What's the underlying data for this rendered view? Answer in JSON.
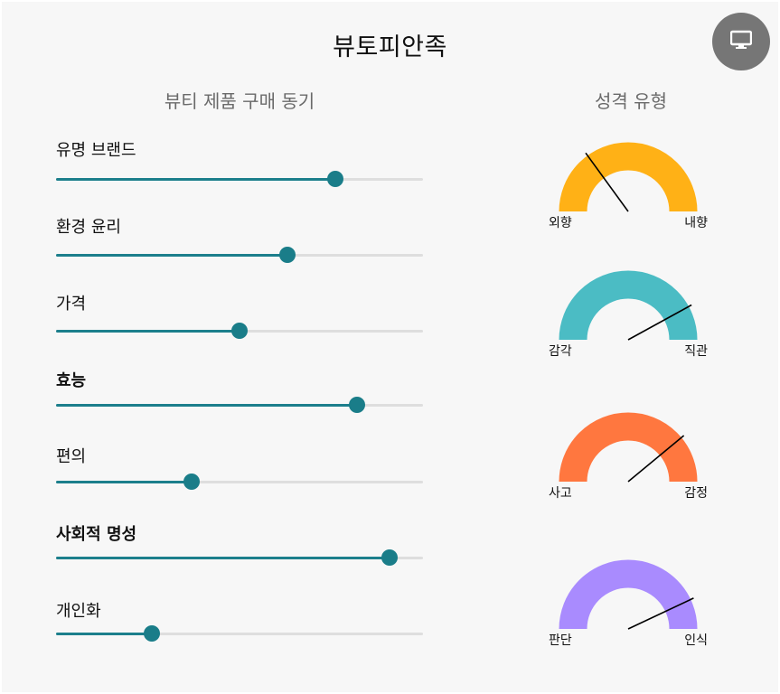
{
  "app": {
    "title": "뷰토피안족"
  },
  "toolbar": {
    "display_icon": "monitor-icon"
  },
  "motives": {
    "heading": "뷰티 제품 구매 동기",
    "items": [
      {
        "label": "유명 브랜드",
        "value": 0.76,
        "bold": false
      },
      {
        "label": "환경 윤리",
        "value": 0.63,
        "bold": false
      },
      {
        "label": "가격",
        "value": 0.5,
        "bold": false
      },
      {
        "label": "효능",
        "value": 0.82,
        "bold": true
      },
      {
        "label": "편의",
        "value": 0.37,
        "bold": false
      },
      {
        "label": "사회적 명성",
        "value": 0.91,
        "bold": true
      },
      {
        "label": "개인화",
        "value": 0.26,
        "bold": false
      }
    ]
  },
  "personality": {
    "heading": "성격 유형",
    "gauges": [
      {
        "left": "외향",
        "right": "내향",
        "color": "#ffb116",
        "value": 0.3
      },
      {
        "left": "감각",
        "right": "직관",
        "color": "#4bbcc4",
        "value": 0.84
      },
      {
        "left": "사고",
        "right": "감정",
        "color": "#ff773f",
        "value": 0.78
      },
      {
        "left": "판단",
        "right": "인식",
        "color": "#a98bfe",
        "value": 0.86
      }
    ]
  }
}
